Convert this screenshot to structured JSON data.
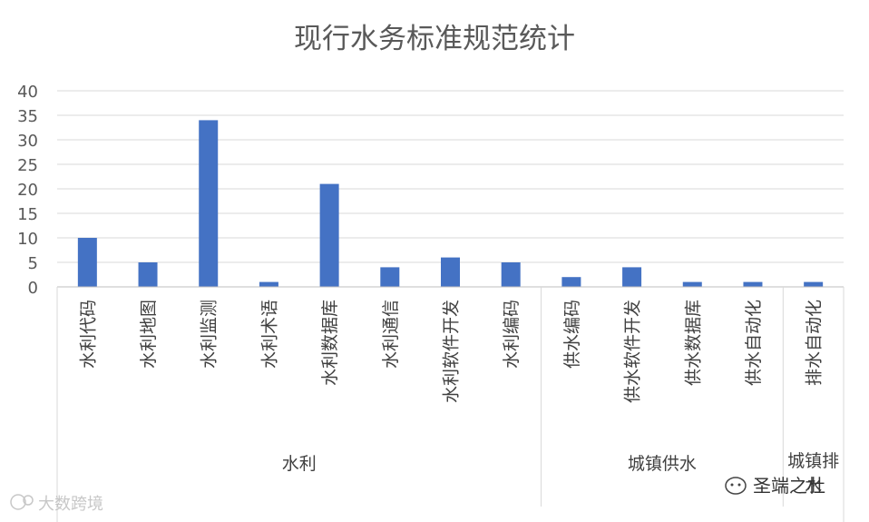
{
  "chart_data": {
    "type": "bar",
    "title": "现行水务标准规范统计",
    "xlabel": "",
    "ylabel": "",
    "ylim": [
      0,
      40
    ],
    "yticks": [
      0,
      5,
      10,
      15,
      20,
      25,
      30,
      35,
      40
    ],
    "grid": true,
    "bar_color": "#4472C4",
    "categories": [
      "水利代码",
      "水利地图",
      "水利监测",
      "水利术语",
      "水利数据库",
      "水利通信",
      "水利软件开发",
      "水利编码",
      "供水编码",
      "供水软件开发",
      "供水数据库",
      "供水自动化",
      "排水自动化"
    ],
    "values": [
      10,
      5,
      34,
      1,
      21,
      4,
      6,
      5,
      2,
      4,
      1,
      1,
      1
    ],
    "groups": [
      {
        "label": "水利",
        "count": 8
      },
      {
        "label": "城镇供水",
        "count": 4
      },
      {
        "label": "城镇排水",
        "count": 1
      }
    ]
  },
  "watermarks": {
    "left": "大数跨境",
    "right": "圣端之杜"
  }
}
